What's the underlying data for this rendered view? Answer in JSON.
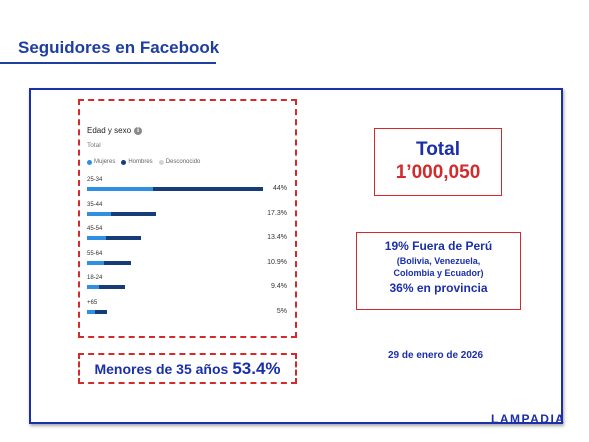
{
  "slide": {
    "title": "Seguidores en Facebook",
    "brand": "LAMPADIA"
  },
  "colors": {
    "mujeres": "#2f8fe0",
    "hombres": "#173d78",
    "desconocido": "#cfd4da",
    "accent_blue": "#1a2fa8",
    "accent_red": "#d22b2b"
  },
  "chart_data": {
    "type": "bar",
    "orientation": "horizontal",
    "stacked": true,
    "title": "Edad y sexo",
    "subtitle": "Total",
    "legend": [
      "Mujeres",
      "Hombres",
      "Desconocido"
    ],
    "legend_placement": "top-left",
    "categories": [
      "25-34",
      "35-44",
      "45-54",
      "55-64",
      "18-24",
      "+65"
    ],
    "series": [
      {
        "name": "Mujeres",
        "values": [
          16.5,
          6.0,
          4.8,
          4.2,
          3.1,
          2.0
        ]
      },
      {
        "name": "Hombres",
        "values": [
          27.5,
          11.3,
          8.6,
          6.7,
          6.3,
          3.0
        ]
      }
    ],
    "totals_labels": [
      "44%",
      "17.3%",
      "13.4%",
      "10.9%",
      "9.4%",
      "5%"
    ],
    "xlim": [
      0,
      44
    ],
    "grid": false
  },
  "total": {
    "label": "Total",
    "value": "1’000,050"
  },
  "geo": {
    "line1": "19% Fuera de Perú",
    "line2": "(Bolivia, Venezuela,",
    "line3": "Colombia y Ecuador)",
    "line4": "36% en provincia"
  },
  "date": "29 de enero de 2026",
  "under35": {
    "label": "Menores de 35 años",
    "value": "53.4%"
  }
}
